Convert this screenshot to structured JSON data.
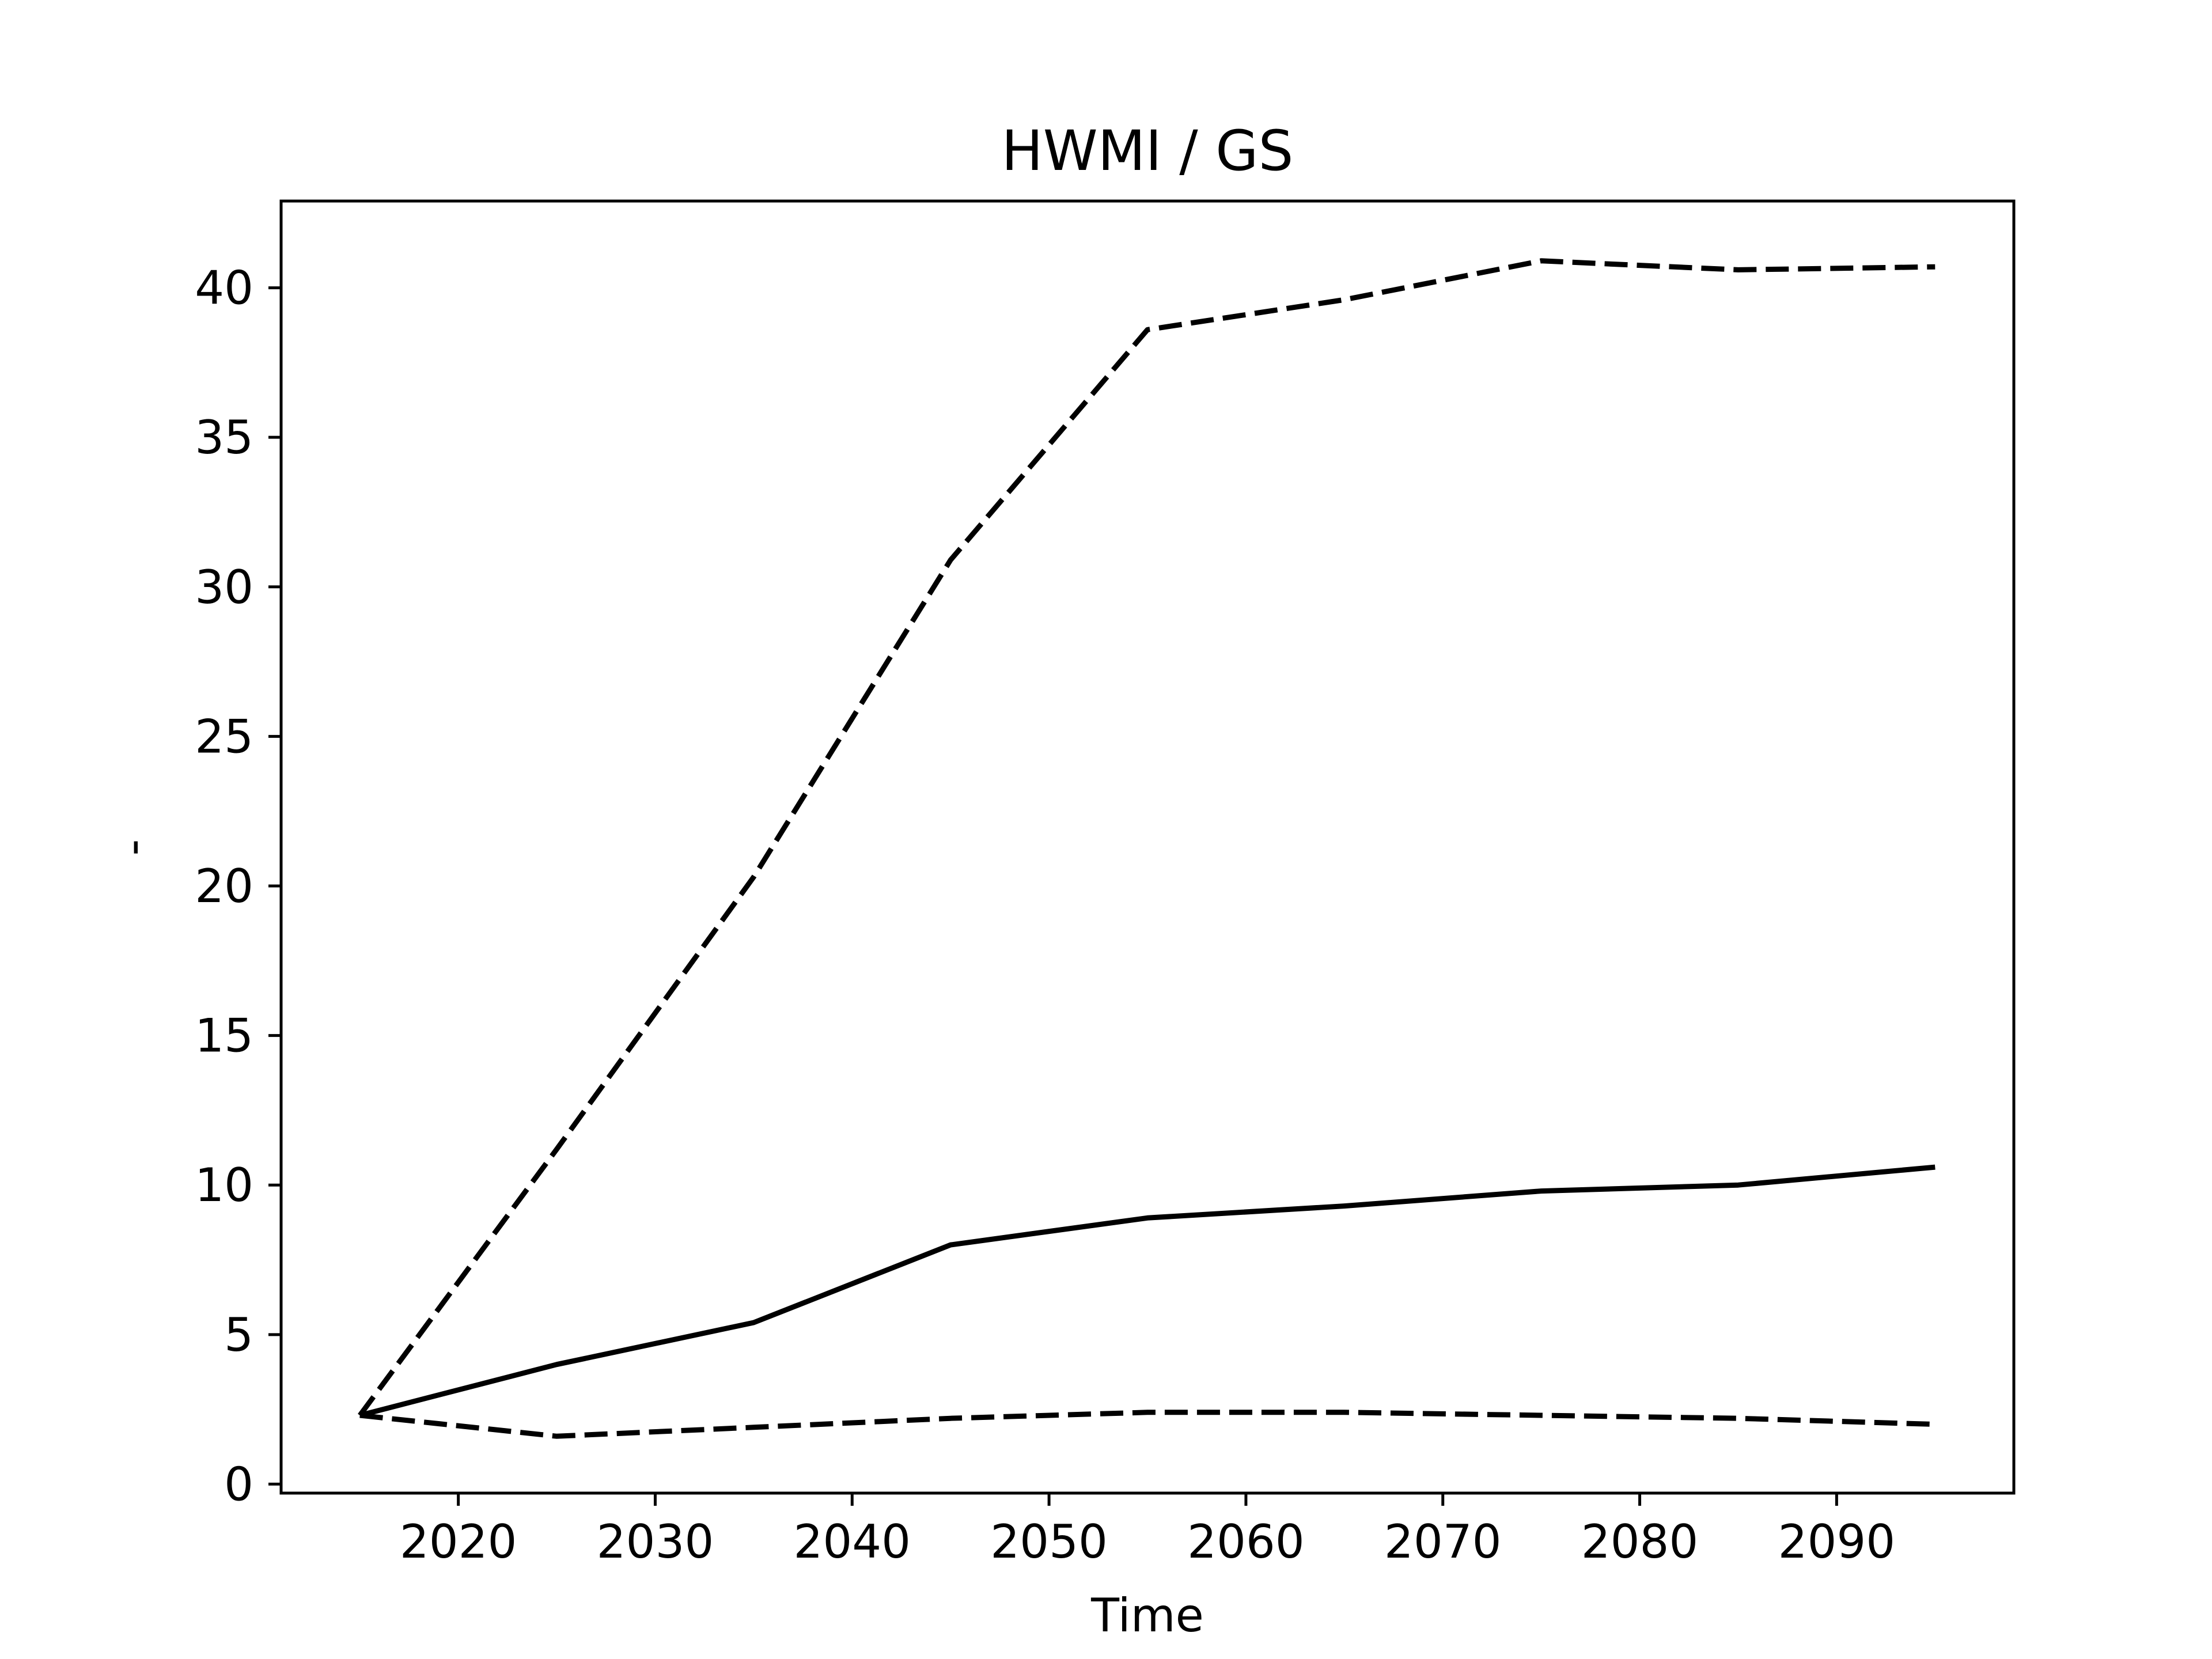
{
  "chart_data": {
    "type": "line",
    "title": "HWMI / GS",
    "xlabel": "Time",
    "ylabel": "-",
    "xlim": [
      2011,
      2099
    ],
    "ylim": [
      -0.3,
      42.9
    ],
    "xticks": [
      2020,
      2030,
      2040,
      2050,
      2060,
      2070,
      2080,
      2090
    ],
    "yticks": [
      0,
      5,
      10,
      15,
      20,
      25,
      30,
      35,
      40
    ],
    "grid": false,
    "legend": "none",
    "x": [
      2015,
      2025,
      2035,
      2045,
      2055,
      2065,
      2075,
      2085,
      2095
    ],
    "series": [
      {
        "style": "solid",
        "color": "#000000",
        "values": [
          2.3,
          4.0,
          5.4,
          8.0,
          8.9,
          9.3,
          9.8,
          10.0,
          10.6
        ]
      },
      {
        "style": "dashed",
        "color": "#000000",
        "values": [
          2.3,
          11.2,
          20.3,
          30.9,
          38.6,
          39.6,
          40.9,
          40.6,
          40.7
        ]
      },
      {
        "style": "dashed",
        "color": "#000000",
        "values": [
          2.3,
          1.6,
          1.9,
          2.2,
          2.4,
          2.4,
          2.3,
          2.2,
          2.0
        ]
      }
    ]
  }
}
